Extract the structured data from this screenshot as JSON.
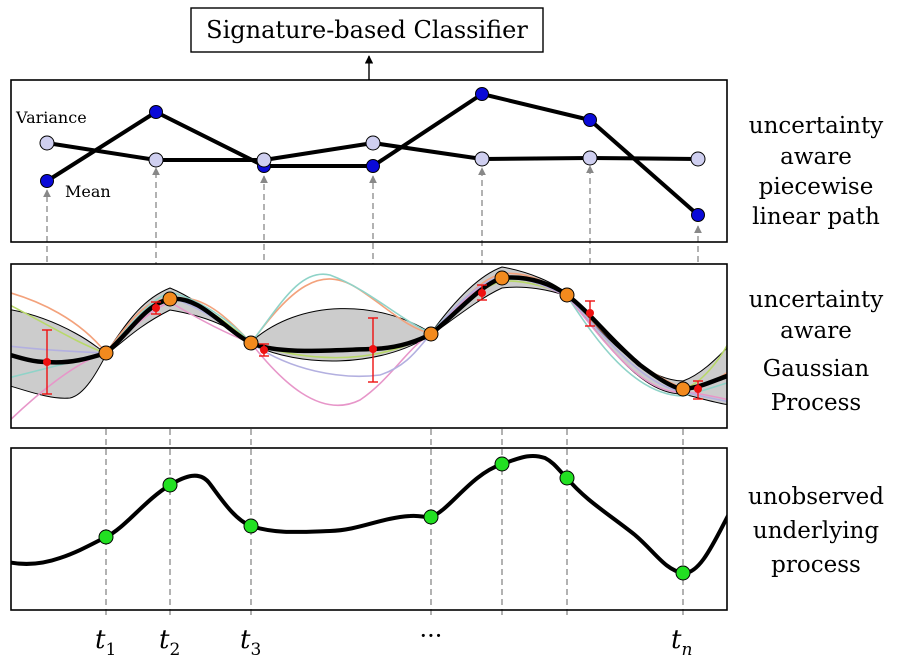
{
  "classifier": {
    "label": "Signature-based Classifier"
  },
  "top_panel": {
    "variance_label": "Variance",
    "mean_label": "Mean",
    "caption": [
      "uncertainty",
      "aware",
      "piecewise",
      "linear path"
    ]
  },
  "middle_panel": {
    "caption": [
      "uncertainty",
      "aware",
      "Gaussian",
      "Process"
    ]
  },
  "bottom_panel": {
    "caption": [
      "unobserved",
      "underlying",
      "process"
    ]
  },
  "axis_labels": {
    "t1": {
      "base": "t",
      "sub": "1"
    },
    "t2": {
      "base": "t",
      "sub": "2"
    },
    "t3": {
      "base": "t",
      "sub": "3"
    },
    "dots": "···",
    "tn": {
      "base": "t",
      "sub": "n"
    }
  },
  "colors": {
    "mean_point": "#0a0ad8",
    "variance_point": "#cfcff0",
    "gp_observation": "#f28a1e",
    "gp_mean_marker": "#ee1111",
    "process_point": "#22e022",
    "gp_band": "#cccccc",
    "sample_paths": [
      "#f3a27c",
      "#8fd3c8",
      "#b8d86a",
      "#e796c9",
      "#b3b0e0"
    ]
  }
}
